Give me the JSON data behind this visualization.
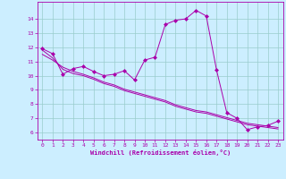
{
  "xlabel": "Windchill (Refroidissement éolien,°C)",
  "bg_color": "#cceeff",
  "line_color": "#aa00aa",
  "grid_color": "#99cccc",
  "xlim": [
    -0.5,
    23.5
  ],
  "ylim": [
    5.5,
    15.2
  ],
  "xticks": [
    0,
    1,
    2,
    3,
    4,
    5,
    6,
    7,
    8,
    9,
    10,
    11,
    12,
    13,
    14,
    15,
    16,
    17,
    18,
    19,
    20,
    21,
    22,
    23
  ],
  "yticks": [
    6,
    7,
    8,
    9,
    10,
    11,
    12,
    13,
    14
  ],
  "series1_x": [
    0,
    1,
    2,
    3,
    4,
    5,
    6,
    7,
    8,
    9,
    10,
    11,
    12,
    13,
    14,
    15,
    16,
    17,
    18,
    19,
    20,
    21,
    22,
    23
  ],
  "series1_y": [
    11.9,
    11.55,
    10.1,
    10.5,
    10.65,
    10.3,
    10.0,
    10.1,
    10.35,
    9.7,
    11.1,
    11.3,
    13.6,
    13.9,
    14.0,
    14.6,
    14.2,
    10.4,
    7.4,
    7.0,
    6.2,
    6.4,
    6.5,
    6.8
  ],
  "series2_x": [
    0,
    1,
    2,
    3,
    4,
    5,
    6,
    7,
    8,
    9,
    10,
    11,
    12,
    13,
    14,
    15,
    16,
    17,
    18,
    19,
    20,
    21,
    22,
    23
  ],
  "series2_y": [
    11.5,
    11.1,
    10.6,
    10.3,
    10.1,
    9.85,
    9.55,
    9.35,
    9.05,
    8.85,
    8.65,
    8.45,
    8.25,
    7.95,
    7.75,
    7.55,
    7.45,
    7.25,
    7.05,
    6.85,
    6.65,
    6.55,
    6.45,
    6.35
  ],
  "series3_x": [
    0,
    1,
    2,
    3,
    4,
    5,
    6,
    7,
    8,
    9,
    10,
    11,
    12,
    13,
    14,
    15,
    16,
    17,
    18,
    19,
    20,
    21,
    22,
    23
  ],
  "series3_y": [
    11.8,
    11.25,
    10.45,
    10.15,
    10.0,
    9.75,
    9.45,
    9.25,
    8.95,
    8.75,
    8.55,
    8.35,
    8.15,
    7.85,
    7.65,
    7.45,
    7.35,
    7.15,
    6.95,
    6.75,
    6.55,
    6.45,
    6.35,
    6.25
  ]
}
